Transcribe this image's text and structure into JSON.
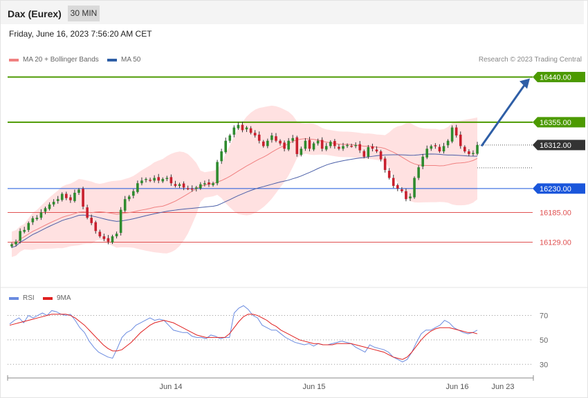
{
  "header": {
    "instrument": "Dax (Eurex)",
    "timeframe": "30 MIN"
  },
  "timestamp": "Friday, June 16, 2023 7:56:20 AM CET",
  "legend": {
    "ma20_label": "MA 20 + Bollinger Bands",
    "ma50_label": "MA 50",
    "rsi_label": "RSI",
    "ma9_label": "9MA"
  },
  "credit": "Research © 2023 Trading Central",
  "colors": {
    "up": "#2e8b2e",
    "down": "#c8202e",
    "ma20": "#f08080",
    "ma50": "#4a5fa8",
    "band": "#ffdede",
    "resistance": "#4c9a00",
    "support_blue": "#1a56db",
    "support_red": "#e05050",
    "rsi": "#6a8be0",
    "rsi_ma": "#e02020",
    "arrow": "#2e5ea6"
  },
  "chart_data": [
    {
      "type": "candlestick",
      "title": "",
      "ylim": [
        16045,
        16455
      ],
      "x_ticks": [
        "Jun 14",
        "Jun 15",
        "Jun 16",
        "Jun 23"
      ],
      "levels": [
        {
          "value": 16440.0,
          "label": "16440.00",
          "kind": "resistance"
        },
        {
          "value": 16355.0,
          "label": "16355.00",
          "kind": "resistance"
        },
        {
          "value": 16312.0,
          "label": "16312.00",
          "kind": "last"
        },
        {
          "value": 16230.0,
          "label": "16230.00",
          "kind": "pivot"
        },
        {
          "value": 16185.0,
          "label": "16185.00",
          "kind": "support"
        },
        {
          "value": 16129.0,
          "label": "16129.00",
          "kind": "support"
        }
      ],
      "target_arrow": {
        "from": 16310,
        "to": 16440
      },
      "close": [
        16125,
        16130,
        16150,
        16152,
        16165,
        16174,
        16175,
        16185,
        16193,
        16200,
        16205,
        16210,
        16220,
        16212,
        16208,
        16222,
        16228,
        16196,
        16175,
        16165,
        16150,
        16140,
        16135,
        16130,
        16140,
        16145,
        16190,
        16210,
        16215,
        16225,
        16240,
        16245,
        16248,
        16245,
        16250,
        16245,
        16248,
        16250,
        16240,
        16235,
        16238,
        16232,
        16230,
        16228,
        16232,
        16238,
        16240,
        16238,
        16240,
        16280,
        16300,
        16320,
        16330,
        16345,
        16350,
        16340,
        16345,
        16335,
        16330,
        16320,
        16310,
        16320,
        16330,
        16320,
        16315,
        16305,
        16320,
        16325,
        16295,
        16305,
        16320,
        16305,
        16315,
        16320,
        16305,
        16310,
        16318,
        16310,
        16305,
        16310,
        16312,
        16310,
        16312,
        16302,
        16290,
        16308,
        16305,
        16300,
        16285,
        16265,
        16250,
        16235,
        16230,
        16225,
        16210,
        16215,
        16250,
        16270,
        16290,
        16305,
        16310,
        16310,
        16300,
        16310,
        16320,
        16345,
        16330,
        16310,
        16300,
        16295,
        16297,
        16312
      ]
    },
    {
      "type": "line",
      "title": "",
      "ylim": [
        20,
        85
      ],
      "y_ticks": [
        70,
        50,
        30
      ],
      "series": [
        {
          "name": "RSI",
          "values": [
            63,
            66,
            68,
            64,
            70,
            68,
            70,
            72,
            70,
            74,
            73,
            71,
            70,
            71,
            66,
            60,
            56,
            49,
            44,
            40,
            38,
            36,
            35,
            43,
            52,
            56,
            58,
            62,
            64,
            66,
            68,
            66,
            67,
            66,
            62,
            58,
            57,
            56,
            56,
            53,
            52,
            52,
            51,
            54,
            53,
            51,
            52,
            52,
            72,
            76,
            78,
            75,
            70,
            68,
            62,
            60,
            58,
            58,
            55,
            52,
            50,
            48,
            47,
            46,
            47,
            45,
            47,
            46,
            46,
            47,
            48,
            49,
            48,
            47,
            44,
            42,
            40,
            46,
            44,
            43,
            42,
            40,
            36,
            34,
            32,
            34,
            40,
            48,
            55,
            58,
            58,
            60,
            62,
            66,
            64,
            60,
            58,
            56,
            55,
            56,
            58
          ]
        },
        {
          "name": "9MA",
          "values": [
            62,
            63,
            64,
            65,
            66,
            67,
            68,
            69,
            70,
            71,
            71,
            71,
            71,
            70,
            68,
            65,
            62,
            58,
            54,
            50,
            46,
            43,
            41,
            41,
            42,
            45,
            48,
            52,
            56,
            59,
            62,
            64,
            65,
            66,
            65,
            64,
            62,
            60,
            58,
            56,
            54,
            53,
            52,
            52,
            52,
            52,
            52,
            55,
            60,
            65,
            69,
            71,
            71,
            70,
            68,
            66,
            63,
            61,
            58,
            56,
            54,
            52,
            50,
            49,
            48,
            47,
            47,
            46,
            46,
            46,
            47,
            47,
            47,
            47,
            46,
            45,
            44,
            43,
            42,
            41,
            40,
            38,
            36,
            35,
            34,
            36,
            40,
            45,
            50,
            54,
            57,
            59,
            60,
            60,
            60,
            59,
            58,
            57,
            56,
            56,
            55
          ]
        }
      ]
    }
  ]
}
